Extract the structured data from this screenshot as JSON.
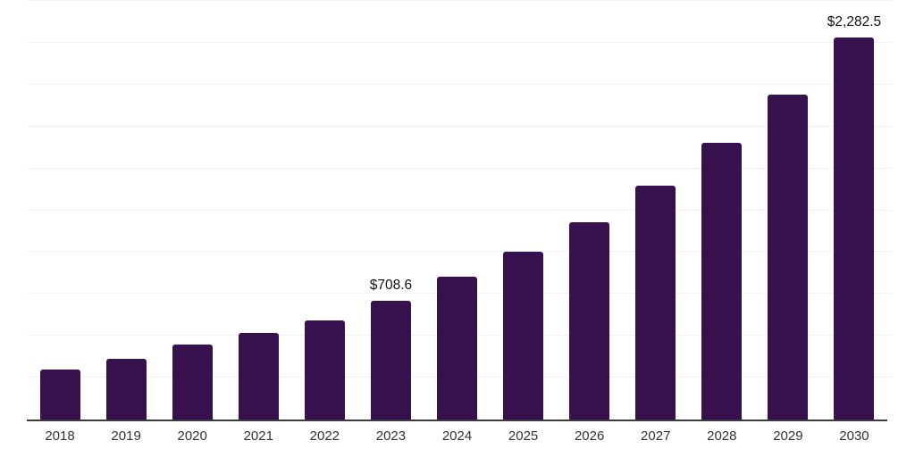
{
  "chart_data": {
    "type": "bar",
    "title": "",
    "xlabel": "",
    "ylabel": "",
    "categories": [
      "2018",
      "2019",
      "2020",
      "2021",
      "2022",
      "2023",
      "2024",
      "2025",
      "2026",
      "2027",
      "2028",
      "2029",
      "2030"
    ],
    "values": [
      300,
      362,
      446,
      517,
      592,
      708.6,
      853,
      1003,
      1180,
      1395,
      1650,
      1942,
      2282.5
    ],
    "data_labels": {
      "2023": "$708.6",
      "2030": "$2,282.5"
    },
    "ylim": [
      0,
      2500
    ],
    "grid_step": 250,
    "grid": true,
    "legend": false,
    "bar_color": "#36114E",
    "gridline_color": "#f2f2f4",
    "axis_color": "#3c3c3c",
    "tick_label_color": "#333333",
    "data_label_color": "#111111"
  }
}
